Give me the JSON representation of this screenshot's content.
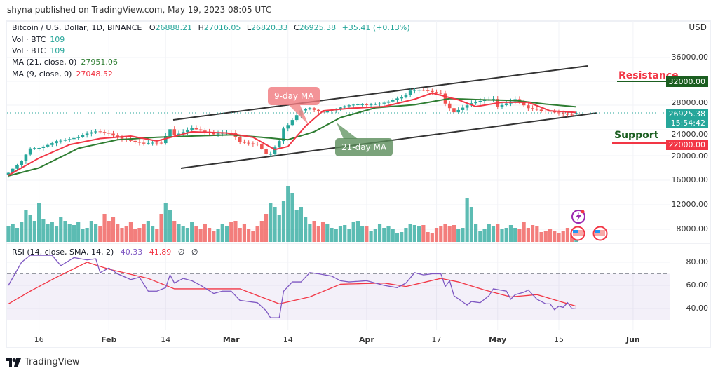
{
  "publisher": "shyna published on TradingView.com, May 19, 2023 08:05 UTC",
  "legend": {
    "symbol": "Bitcoin / U.S. Dollar, 1D, BINANCE",
    "o_label": "O",
    "o": "26888.21",
    "h_label": "H",
    "h": "27016.05",
    "l_label": "L",
    "l": "26820.33",
    "c_label": "C",
    "c": "26925.38",
    "change": "+35.41 (+0.13%)",
    "vol1_label": "Vol · BTC",
    "vol1": "109",
    "vol2_label": "Vol · BTC",
    "vol2": "109",
    "ma21_label": "MA (21, close, 0)",
    "ma21": "27951.06",
    "ma9_label": "MA (9, close, 0)",
    "ma9": "27048.52"
  },
  "rsi_legend": {
    "label": "RSI (14, close, SMA, 14, 2)",
    "rsi": "40.33",
    "sma": "41.89",
    "x1": "∅",
    "x2": "∅"
  },
  "currency": "USD",
  "price_axis": [
    "36000.00",
    "28000.00",
    "24000.00",
    "20000.00",
    "16000.00",
    "12000.00",
    "8000.00"
  ],
  "rsi_axis": [
    "80.00",
    "60.00",
    "40.00"
  ],
  "time_axis": [
    {
      "label": "16",
      "date": "2023-01-16",
      "bold": false
    },
    {
      "label": "Feb",
      "date": "2023-02-01",
      "bold": true
    },
    {
      "label": "14",
      "date": "2023-02-14",
      "bold": false
    },
    {
      "label": "Mar",
      "date": "2023-03-01",
      "bold": true
    },
    {
      "label": "14",
      "date": "2023-03-14",
      "bold": false
    },
    {
      "label": "Apr",
      "date": "2023-04-01",
      "bold": true
    },
    {
      "label": "17",
      "date": "2023-04-17",
      "bold": false
    },
    {
      "label": "May",
      "date": "2023-05-01",
      "bold": true
    },
    {
      "label": "15",
      "date": "2023-05-15",
      "bold": false
    },
    {
      "label": "Jun",
      "date": "2023-06-01",
      "bold": true
    }
  ],
  "price_labels": {
    "resistance": {
      "text": "Resistance",
      "value": "32000.00",
      "color": "#f23645",
      "box_color": "#1b5e20"
    },
    "support": {
      "text": "Support",
      "value": "22000.00",
      "color": "#1b5e20",
      "box_color": "#f23645"
    },
    "current": {
      "value": "26925.38",
      "countdown": "15:54:42",
      "color": "#26a69a"
    }
  },
  "annotations": {
    "ma9": "9-day MA",
    "ma21": "21-day MA"
  },
  "footer": {
    "brand": "TradingView"
  },
  "colors": {
    "up": "#26a69a",
    "down": "#ef5350",
    "ma9": "#f23645",
    "ma21": "#2e7d32",
    "rsi": "#7e57c2",
    "rsi_ma": "#f23645",
    "rsi_band": "#7e57c2"
  },
  "chart_data": {
    "type": "candlestick",
    "start_date": "2023-01-09",
    "close_keypoints": [
      [
        "2023-01-09",
        17200
      ],
      [
        "2023-01-12",
        18800
      ],
      [
        "2023-01-14",
        20900
      ],
      [
        "2023-01-16",
        21200
      ],
      [
        "2023-01-20",
        22700
      ],
      [
        "2023-01-25",
        22900
      ],
      [
        "2023-01-29",
        23700
      ],
      [
        "2023-02-01",
        23700
      ],
      [
        "2023-02-05",
        22900
      ],
      [
        "2023-02-09",
        21800
      ],
      [
        "2023-02-13",
        21800
      ],
      [
        "2023-02-15",
        24300
      ],
      [
        "2023-02-16",
        23500
      ],
      [
        "2023-02-20",
        24800
      ],
      [
        "2023-02-25",
        23200
      ],
      [
        "2023-03-01",
        23600
      ],
      [
        "2023-03-03",
        22400
      ],
      [
        "2023-03-07",
        22200
      ],
      [
        "2023-03-09",
        20300
      ],
      [
        "2023-03-10",
        20200
      ],
      [
        "2023-03-12",
        22100
      ],
      [
        "2023-03-13",
        24100
      ],
      [
        "2023-03-14",
        24700
      ],
      [
        "2023-03-17",
        27400
      ],
      [
        "2023-03-19",
        28000
      ],
      [
        "2023-03-22",
        27300
      ],
      [
        "2023-03-25",
        27500
      ],
      [
        "2023-04-01",
        28400
      ],
      [
        "2023-04-10",
        29600
      ],
      [
        "2023-04-11",
        30300
      ],
      [
        "2023-04-14",
        30500
      ],
      [
        "2023-04-18",
        30400
      ],
      [
        "2023-04-19",
        28800
      ],
      [
        "2023-04-21",
        27300
      ],
      [
        "2023-04-25",
        28300
      ],
      [
        "2023-04-26",
        28400
      ],
      [
        "2023-04-30",
        29200
      ],
      [
        "2023-05-01",
        28100
      ],
      [
        "2023-05-05",
        29500
      ],
      [
        "2023-05-08",
        27700
      ],
      [
        "2023-05-11",
        27000
      ],
      [
        "2023-05-14",
        26900
      ],
      [
        "2023-05-19",
        26925.38
      ]
    ],
    "ma9_keypoints": [
      [
        "2023-01-09",
        16800
      ],
      [
        "2023-01-16",
        19600
      ],
      [
        "2023-01-23",
        21800
      ],
      [
        "2023-01-30",
        22800
      ],
      [
        "2023-02-06",
        23200
      ],
      [
        "2023-02-12",
        22400
      ],
      [
        "2023-02-20",
        23900
      ],
      [
        "2023-02-28",
        23700
      ],
      [
        "2023-03-06",
        23000
      ],
      [
        "2023-03-11",
        21000
      ],
      [
        "2023-03-14",
        21500
      ],
      [
        "2023-03-18",
        24800
      ],
      [
        "2023-03-22",
        27300
      ],
      [
        "2023-03-28",
        27700
      ],
      [
        "2023-04-05",
        28000
      ],
      [
        "2023-04-12",
        29200
      ],
      [
        "2023-04-16",
        30200
      ],
      [
        "2023-04-22",
        29100
      ],
      [
        "2023-04-26",
        28000
      ],
      [
        "2023-05-02",
        28700
      ],
      [
        "2023-05-08",
        28700
      ],
      [
        "2023-05-13",
        27300
      ],
      [
        "2023-05-19",
        27048.52
      ]
    ],
    "ma21_keypoints": [
      [
        "2023-01-09",
        16700
      ],
      [
        "2023-01-16",
        18000
      ],
      [
        "2023-01-25",
        21200
      ],
      [
        "2023-02-03",
        22600
      ],
      [
        "2023-02-12",
        23000
      ],
      [
        "2023-02-20",
        23200
      ],
      [
        "2023-03-01",
        23400
      ],
      [
        "2023-03-08",
        23000
      ],
      [
        "2023-03-14",
        22600
      ],
      [
        "2023-03-20",
        23900
      ],
      [
        "2023-03-26",
        26200
      ],
      [
        "2023-04-03",
        27800
      ],
      [
        "2023-04-12",
        28300
      ],
      [
        "2023-04-20",
        29300
      ],
      [
        "2023-04-28",
        29100
      ],
      [
        "2023-05-05",
        29000
      ],
      [
        "2023-05-12",
        28400
      ],
      [
        "2023-05-19",
        27951.06
      ]
    ],
    "volume": [
      22,
      25,
      20,
      28,
      45,
      38,
      30,
      55,
      32,
      25,
      28,
      22,
      35,
      30,
      26,
      24,
      28,
      18,
      20,
      30,
      25,
      22,
      40,
      30,
      35,
      25,
      20,
      22,
      28,
      18,
      20,
      25,
      30,
      22,
      18,
      40,
      55,
      45,
      30,
      25,
      22,
      20,
      28,
      22,
      18,
      25,
      20,
      15,
      18,
      25,
      22,
      28,
      30,
      20,
      25,
      18,
      15,
      22,
      30,
      40,
      55,
      50,
      38,
      58,
      80,
      70,
      45,
      50,
      35,
      25,
      30,
      22,
      28,
      25,
      20,
      18,
      22,
      24,
      18,
      28,
      30,
      22,
      22,
      15,
      18,
      25,
      20,
      22,
      18,
      12,
      14,
      20,
      25,
      24,
      22,
      24,
      14,
      12,
      20,
      22,
      25,
      22,
      24,
      18,
      20,
      62,
      50,
      25,
      15,
      18,
      25,
      22,
      25,
      18,
      20,
      24,
      20,
      18,
      28,
      20,
      24,
      22,
      14,
      16,
      18,
      15,
      12,
      16,
      20,
      12,
      8
    ],
    "rsi_keypoints": [
      [
        "2023-01-09",
        60
      ],
      [
        "2023-01-12",
        80
      ],
      [
        "2023-01-14",
        86
      ],
      [
        "2023-01-19",
        86
      ],
      [
        "2023-01-21",
        77
      ],
      [
        "2023-01-24",
        84
      ],
      [
        "2023-01-27",
        82
      ],
      [
        "2023-01-29",
        83
      ],
      [
        "2023-01-30",
        71
      ],
      [
        "2023-02-01",
        75
      ],
      [
        "2023-02-03",
        70
      ],
      [
        "2023-02-06",
        65
      ],
      [
        "2023-02-08",
        67
      ],
      [
        "2023-02-10",
        55
      ],
      [
        "2023-02-12",
        55
      ],
      [
        "2023-02-14",
        58
      ],
      [
        "2023-02-15",
        69
      ],
      [
        "2023-02-16",
        62
      ],
      [
        "2023-02-18",
        66
      ],
      [
        "2023-02-20",
        64
      ],
      [
        "2023-02-22",
        60
      ],
      [
        "2023-02-25",
        53
      ],
      [
        "2023-02-27",
        55
      ],
      [
        "2023-03-01",
        55
      ],
      [
        "2023-03-03",
        47
      ],
      [
        "2023-03-07",
        45
      ],
      [
        "2023-03-09",
        38
      ],
      [
        "2023-03-10",
        32
      ],
      [
        "2023-03-12",
        32
      ],
      [
        "2023-03-13",
        55
      ],
      [
        "2023-03-15",
        63
      ],
      [
        "2023-03-17",
        63
      ],
      [
        "2023-03-19",
        71
      ],
      [
        "2023-03-21",
        70
      ],
      [
        "2023-03-24",
        68
      ],
      [
        "2023-03-26",
        64
      ],
      [
        "2023-03-28",
        63
      ],
      [
        "2023-04-01",
        64
      ],
      [
        "2023-04-05",
        60
      ],
      [
        "2023-04-08",
        58
      ],
      [
        "2023-04-10",
        62
      ],
      [
        "2023-04-12",
        71
      ],
      [
        "2023-04-14",
        69
      ],
      [
        "2023-04-16",
        70
      ],
      [
        "2023-04-18",
        70
      ],
      [
        "2023-04-19",
        59
      ],
      [
        "2023-04-20",
        64
      ],
      [
        "2023-04-21",
        51
      ],
      [
        "2023-04-24",
        43
      ],
      [
        "2023-04-25",
        46
      ],
      [
        "2023-04-27",
        45
      ],
      [
        "2023-04-29",
        51
      ],
      [
        "2023-04-30",
        57
      ],
      [
        "2023-05-03",
        55
      ],
      [
        "2023-05-04",
        48
      ],
      [
        "2023-05-05",
        52
      ],
      [
        "2023-05-07",
        54
      ],
      [
        "2023-05-08",
        56
      ],
      [
        "2023-05-10",
        48
      ],
      [
        "2023-05-12",
        44
      ],
      [
        "2023-05-13",
        44
      ],
      [
        "2023-05-14",
        39
      ],
      [
        "2023-05-15",
        42
      ],
      [
        "2023-05-16",
        41
      ],
      [
        "2023-05-17",
        45
      ],
      [
        "2023-05-18",
        40
      ],
      [
        "2023-05-19",
        40.33
      ]
    ],
    "rsi_ma_keypoints": [
      [
        "2023-01-09",
        44
      ],
      [
        "2023-01-14",
        55
      ],
      [
        "2023-01-20",
        67
      ],
      [
        "2023-01-27",
        80
      ],
      [
        "2023-02-01",
        74
      ],
      [
        "2023-02-10",
        66
      ],
      [
        "2023-02-16",
        57
      ],
      [
        "2023-02-25",
        57
      ],
      [
        "2023-03-03",
        57
      ],
      [
        "2023-03-12",
        44
      ],
      [
        "2023-03-19",
        50
      ],
      [
        "2023-03-26",
        61
      ],
      [
        "2023-04-05",
        62
      ],
      [
        "2023-04-10",
        59
      ],
      [
        "2023-04-18",
        66
      ],
      [
        "2023-04-22",
        63
      ],
      [
        "2023-04-28",
        56
      ],
      [
        "2023-05-04",
        50
      ],
      [
        "2023-05-10",
        52
      ],
      [
        "2023-05-19",
        41.89
      ]
    ],
    "rsi_bands": {
      "upper": 70,
      "middle": 50,
      "lower": 30
    },
    "price_range": [
      14000,
      38000
    ],
    "rsi_range": [
      20,
      90
    ],
    "grid": true
  }
}
